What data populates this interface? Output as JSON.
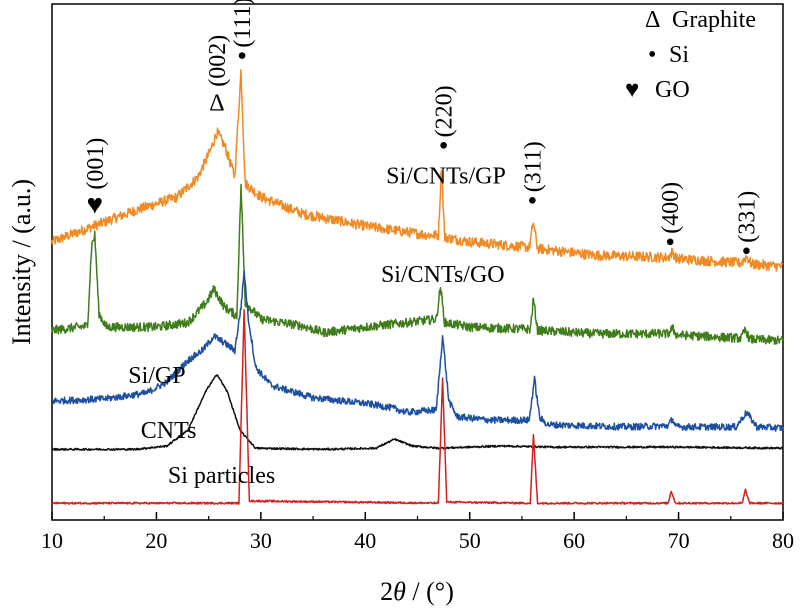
{
  "chart_data": {
    "type": "line",
    "xlabel_prefix": "2",
    "xlabel_var": "θ",
    "xlabel_suffix": " / (°)",
    "ylabel": "Intensity / (a.u.)",
    "xlim": [
      10,
      80
    ],
    "xticks": [
      "10",
      "20",
      "30",
      "40",
      "50",
      "60",
      "70",
      "80"
    ],
    "yticks_shown": false,
    "grid": false,
    "legend": {
      "placement": "top-right",
      "entries": [
        {
          "symbol": "Δ",
          "label": "Graphite"
        },
        {
          "symbol": "•",
          "label": "Si"
        },
        {
          "symbol": "♥",
          "label": "GO"
        }
      ]
    },
    "series": [
      {
        "name": "Si/CNTs/GP",
        "color": "#f08a24",
        "noise": 0.45,
        "keypoints": [
          [
            10,
            18.8
          ],
          [
            14,
            20.2
          ],
          [
            18,
            21.6
          ],
          [
            22,
            22.8
          ],
          [
            24,
            24.6
          ],
          [
            25.2,
            27.0
          ],
          [
            25.8,
            28.6
          ],
          [
            26.6,
            27.2
          ],
          [
            27.5,
            24.6
          ],
          [
            28.1,
            34.0
          ],
          [
            28.5,
            24.0
          ],
          [
            30,
            22.8
          ],
          [
            34,
            21.3
          ],
          [
            40,
            20.2
          ],
          [
            46,
            19.4
          ],
          [
            47.0,
            19.4
          ],
          [
            47.3,
            25.6
          ],
          [
            47.6,
            19.2
          ],
          [
            50,
            18.8
          ],
          [
            55.7,
            18.3
          ],
          [
            56.1,
            20.5
          ],
          [
            56.5,
            18.2
          ],
          [
            62,
            17.6
          ],
          [
            69,
            17.4
          ],
          [
            69.4,
            17.9
          ],
          [
            69.8,
            17.3
          ],
          [
            76,
            16.9
          ],
          [
            76.5,
            17.5
          ],
          [
            77,
            16.8
          ],
          [
            80,
            16.6
          ]
        ]
      },
      {
        "name": "Si/CNTs/GO",
        "color": "#3f7d1a",
        "noise": 0.4,
        "keypoints": [
          [
            10,
            10.9
          ],
          [
            13.4,
            11.3
          ],
          [
            13.8,
            18.5
          ],
          [
            14.1,
            19.4
          ],
          [
            14.5,
            12.4
          ],
          [
            15.2,
            11.2
          ],
          [
            20,
            11.2
          ],
          [
            23,
            11.6
          ],
          [
            24.8,
            13.4
          ],
          [
            25.5,
            14.6
          ],
          [
            26.5,
            13.0
          ],
          [
            27.7,
            12.2
          ],
          [
            28.1,
            23.8
          ],
          [
            28.5,
            13.4
          ],
          [
            30,
            11.9
          ],
          [
            34,
            11.3
          ],
          [
            36,
            10.7
          ],
          [
            40,
            11.2
          ],
          [
            44,
            11.6
          ],
          [
            46.8,
            11.9
          ],
          [
            47.2,
            14.8
          ],
          [
            47.6,
            11.6
          ],
          [
            50,
            11.2
          ],
          [
            55.8,
            11.0
          ],
          [
            56.1,
            13.7
          ],
          [
            56.5,
            10.9
          ],
          [
            62,
            10.6
          ],
          [
            69,
            10.6
          ],
          [
            69.4,
            11.1
          ],
          [
            69.8,
            10.5
          ],
          [
            76,
            10.2
          ],
          [
            76.4,
            11.0
          ],
          [
            76.8,
            10.1
          ],
          [
            80,
            10.0
          ]
        ]
      },
      {
        "name": "Si/GP",
        "color": "#1f4fa0",
        "noise": 0.3,
        "keypoints": [
          [
            10,
            4.6
          ],
          [
            15,
            4.8
          ],
          [
            19,
            5.3
          ],
          [
            21,
            6.3
          ],
          [
            23,
            8.2
          ],
          [
            24.5,
            9.2
          ],
          [
            25.5,
            10.4
          ],
          [
            26.5,
            9.8
          ],
          [
            27.5,
            9.1
          ],
          [
            28.1,
            13.0
          ],
          [
            28.4,
            16.2
          ],
          [
            28.8,
            12.0
          ],
          [
            29.5,
            7.6
          ],
          [
            31,
            6.0
          ],
          [
            35,
            4.9
          ],
          [
            40,
            4.4
          ],
          [
            42.5,
            4.0
          ],
          [
            44,
            3.6
          ],
          [
            46.8,
            3.8
          ],
          [
            47.4,
            10.4
          ],
          [
            48.0,
            4.6
          ],
          [
            48.8,
            3.2
          ],
          [
            52,
            2.9
          ],
          [
            55.7,
            2.9
          ],
          [
            56.2,
            6.6
          ],
          [
            56.7,
            3.1
          ],
          [
            57.5,
            2.5
          ],
          [
            65,
            2.3
          ],
          [
            69.0,
            2.4
          ],
          [
            69.4,
            3.0
          ],
          [
            69.8,
            2.3
          ],
          [
            75.5,
            2.3
          ],
          [
            76.5,
            3.6
          ],
          [
            77.5,
            2.3
          ],
          [
            80,
            2.2
          ]
        ]
      },
      {
        "name": "CNTs",
        "color": "#111111",
        "noise": 0.08,
        "keypoints": [
          [
            10,
            0.3
          ],
          [
            18,
            0.3
          ],
          [
            21,
            0.6
          ],
          [
            23,
            2.0
          ],
          [
            24.8,
            5.6
          ],
          [
            25.8,
            7.0
          ],
          [
            26.8,
            5.4
          ],
          [
            28,
            2.0
          ],
          [
            29.5,
            0.4
          ],
          [
            36,
            0.3
          ],
          [
            41,
            0.4
          ],
          [
            42.8,
            1.2
          ],
          [
            44.5,
            0.6
          ],
          [
            47,
            0.4
          ],
          [
            53,
            0.6
          ],
          [
            58,
            0.5
          ],
          [
            70,
            0.5
          ],
          [
            80,
            0.4
          ]
        ]
      },
      {
        "name": "Si particles",
        "color": "#d41f1f",
        "noise": 0.08,
        "keypoints": [
          [
            10,
            -4.5
          ],
          [
            27.9,
            -4.5
          ],
          [
            28.4,
            12.8
          ],
          [
            28.9,
            -4.3
          ],
          [
            47.0,
            -4.5
          ],
          [
            47.4,
            6.6
          ],
          [
            47.8,
            -4.4
          ],
          [
            55.8,
            -4.5
          ],
          [
            56.1,
            1.6
          ],
          [
            56.5,
            -4.5
          ],
          [
            69.0,
            -4.5
          ],
          [
            69.3,
            -3.4
          ],
          [
            69.7,
            -4.5
          ],
          [
            76.1,
            -4.5
          ],
          [
            76.4,
            -3.3
          ],
          [
            76.8,
            -4.5
          ],
          [
            80,
            -4.5
          ]
        ]
      }
    ],
    "series_labels": [
      {
        "series": "Si/CNTs/GP",
        "x": 42,
        "y": 24.0
      },
      {
        "series": "Si/CNTs/GO",
        "x": 41.5,
        "y": 15.2
      },
      {
        "series": "Si/GP",
        "x": 17.3,
        "y": 6.2
      },
      {
        "series": "CNTs",
        "x": 18.5,
        "y": 1.3
      },
      {
        "series": "Si particles",
        "x": 21.1,
        "y": -2.7
      }
    ],
    "peak_annotations": [
      {
        "label": "(001)",
        "phase": "GO",
        "symbol": "♥",
        "x": 14.1,
        "y": 22.2
      },
      {
        "label": "(002)",
        "phase": "Graphite",
        "symbol": "Δ",
        "x": 25.8,
        "y": 31.2
      },
      {
        "label": "(111)",
        "phase": "Si",
        "symbol": "•",
        "x": 28.2,
        "y": 35.4
      },
      {
        "label": "(220)",
        "phase": "Si",
        "symbol": "•",
        "x": 47.5,
        "y": 27.4
      },
      {
        "label": "(311)",
        "phase": "Si",
        "symbol": "•",
        "x": 56.0,
        "y": 22.5
      },
      {
        "label": "(400)",
        "phase": "Si",
        "symbol": "•",
        "x": 69.2,
        "y": 18.8
      },
      {
        "label": "(331)",
        "phase": "Si",
        "symbol": "•",
        "x": 76.5,
        "y": 18.0
      }
    ],
    "yrange_hint": [
      -6,
      40
    ]
  }
}
